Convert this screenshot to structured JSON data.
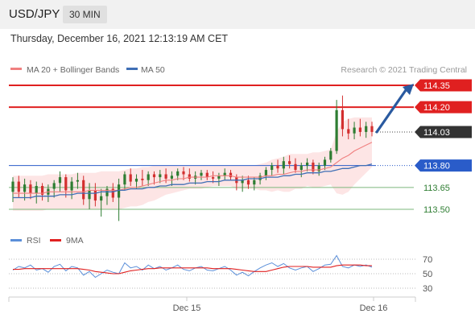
{
  "header": {
    "pair": "USD/JPY",
    "timeframe": "30 MIN"
  },
  "datetime": "Thursday, December 16, 2021 12:13:19 AM CET",
  "legend": {
    "ma20_bb": "MA 20 + Bollinger Bands",
    "ma50": "MA 50",
    "credit": "Research © 2021 Trading Central",
    "rsi": "RSI",
    "ma9": "9MA"
  },
  "colors": {
    "candle_up": "#2e7d32",
    "candle_down": "#d32f2f",
    "bb_fill": "#fde2e2",
    "ma20": "#f08080",
    "ma50": "#3f6fb5",
    "resistance": "#e02020",
    "pivot": "#2a5cc9",
    "support": "#7cb87c",
    "arrow": "#2a5aa0",
    "last_price": "#333333",
    "rsi": "#5b8fd9",
    "ma9": "#e02020"
  },
  "chart_data": {
    "type": "candlestick",
    "yunit": "JPY per USD",
    "x_ticks": [
      "Dec 15",
      "Dec 16"
    ],
    "levels": [
      {
        "value": "114.35",
        "kind": "resistance",
        "style": "box"
      },
      {
        "value": "114.20",
        "kind": "resistance",
        "style": "box"
      },
      {
        "value": "114.03",
        "kind": "last",
        "style": "box"
      },
      {
        "value": "113.80",
        "kind": "pivot",
        "style": "box"
      },
      {
        "value": "113.65",
        "kind": "support",
        "style": "text"
      },
      {
        "value": "113.50",
        "kind": "support",
        "style": "text"
      }
    ],
    "candles": [
      [
        113.62,
        113.72,
        113.55,
        113.69
      ],
      [
        113.69,
        113.73,
        113.58,
        113.62
      ],
      [
        113.62,
        113.71,
        113.56,
        113.67
      ],
      [
        113.67,
        113.7,
        113.57,
        113.61
      ],
      [
        113.61,
        113.69,
        113.54,
        113.66
      ],
      [
        113.66,
        113.68,
        113.56,
        113.6
      ],
      [
        113.6,
        113.67,
        113.55,
        113.64
      ],
      [
        113.64,
        113.7,
        113.58,
        113.68
      ],
      [
        113.68,
        113.76,
        113.62,
        113.72
      ],
      [
        113.72,
        113.74,
        113.58,
        113.63
      ],
      [
        113.63,
        113.72,
        113.57,
        113.69
      ],
      [
        113.69,
        113.75,
        113.64,
        113.7
      ],
      [
        113.7,
        113.73,
        113.53,
        113.57
      ],
      [
        113.57,
        113.68,
        113.5,
        113.63
      ],
      [
        113.63,
        113.68,
        113.52,
        113.56
      ],
      [
        113.56,
        113.64,
        113.45,
        113.59
      ],
      [
        113.59,
        113.66,
        113.53,
        113.64
      ],
      [
        113.64,
        113.68,
        113.55,
        113.58
      ],
      [
        113.58,
        113.71,
        113.42,
        113.67
      ],
      [
        113.67,
        113.76,
        113.63,
        113.74
      ],
      [
        113.74,
        113.78,
        113.66,
        113.69
      ],
      [
        113.69,
        113.74,
        113.64,
        113.71
      ],
      [
        113.71,
        113.77,
        113.66,
        113.7
      ],
      [
        113.7,
        113.76,
        113.66,
        113.74
      ],
      [
        113.74,
        113.76,
        113.67,
        113.72
      ],
      [
        113.72,
        113.77,
        113.68,
        113.74
      ],
      [
        113.74,
        113.78,
        113.68,
        113.71
      ],
      [
        113.71,
        113.76,
        113.66,
        113.73
      ],
      [
        113.73,
        113.78,
        113.7,
        113.76
      ],
      [
        113.76,
        113.79,
        113.7,
        113.74
      ],
      [
        113.74,
        113.78,
        113.69,
        113.71
      ],
      [
        113.71,
        113.76,
        113.67,
        113.73
      ],
      [
        113.73,
        113.77,
        113.7,
        113.75
      ],
      [
        113.75,
        113.77,
        113.7,
        113.72
      ],
      [
        113.72,
        113.76,
        113.68,
        113.71
      ],
      [
        113.71,
        113.75,
        113.66,
        113.73
      ],
      [
        113.73,
        113.78,
        113.7,
        113.75
      ],
      [
        113.75,
        113.77,
        113.7,
        113.72
      ],
      [
        113.72,
        113.74,
        113.63,
        113.68
      ],
      [
        113.68,
        113.73,
        113.62,
        113.7
      ],
      [
        113.7,
        113.73,
        113.64,
        113.67
      ],
      [
        113.67,
        113.72,
        113.63,
        113.7
      ],
      [
        113.7,
        113.75,
        113.67,
        113.73
      ],
      [
        113.73,
        113.79,
        113.7,
        113.77
      ],
      [
        113.77,
        113.82,
        113.73,
        113.8
      ],
      [
        113.8,
        113.84,
        113.75,
        113.78
      ],
      [
        113.78,
        113.86,
        113.74,
        113.83
      ],
      [
        113.83,
        113.87,
        113.78,
        113.81
      ],
      [
        113.81,
        113.85,
        113.75,
        113.77
      ],
      [
        113.77,
        113.82,
        113.72,
        113.8
      ],
      [
        113.8,
        113.85,
        113.76,
        113.82
      ],
      [
        113.82,
        113.84,
        113.74,
        113.76
      ],
      [
        113.76,
        113.82,
        113.73,
        113.8
      ],
      [
        113.8,
        113.86,
        113.77,
        113.84
      ],
      [
        113.84,
        113.92,
        113.82,
        113.9
      ],
      [
        113.9,
        114.25,
        113.88,
        114.18
      ],
      [
        114.18,
        114.28,
        114.0,
        114.05
      ],
      [
        114.05,
        114.12,
        113.98,
        114.02
      ],
      [
        114.02,
        114.1,
        113.98,
        114.06
      ],
      [
        114.06,
        114.12,
        114.0,
        114.03
      ],
      [
        114.03,
        114.1,
        113.99,
        114.07
      ],
      [
        114.07,
        114.1,
        114.0,
        114.03
      ]
    ],
    "ma20": [
      113.61,
      113.61,
      113.61,
      113.61,
      113.61,
      113.61,
      113.62,
      113.62,
      113.62,
      113.62,
      113.62,
      113.62,
      113.62,
      113.63,
      113.63,
      113.63,
      113.63,
      113.63,
      113.63,
      113.64,
      113.65,
      113.65,
      113.66,
      113.67,
      113.68,
      113.69,
      113.7,
      113.7,
      113.71,
      113.71,
      113.72,
      113.72,
      113.72,
      113.72,
      113.73,
      113.73,
      113.73,
      113.73,
      113.72,
      113.72,
      113.72,
      113.72,
      113.72,
      113.73,
      113.73,
      113.74,
      113.74,
      113.75,
      113.76,
      113.76,
      113.77,
      113.77,
      113.77,
      113.78,
      113.79,
      113.82,
      113.85,
      113.87,
      113.9,
      113.92,
      113.94,
      113.96
    ],
    "ma50": [
      113.58,
      113.58,
      113.58,
      113.58,
      113.59,
      113.59,
      113.59,
      113.59,
      113.6,
      113.6,
      113.6,
      113.61,
      113.61,
      113.61,
      113.61,
      113.62,
      113.62,
      113.62,
      113.63,
      113.63,
      113.64,
      113.64,
      113.64,
      113.65,
      113.65,
      113.66,
      113.66,
      113.67,
      113.67,
      113.67,
      113.68,
      113.68,
      113.68,
      113.69,
      113.69,
      113.69,
      113.7,
      113.7,
      113.7,
      113.7,
      113.71,
      113.71,
      113.71,
      113.72,
      113.72,
      113.72,
      113.73,
      113.73,
      113.74,
      113.74,
      113.75,
      113.75,
      113.75,
      113.76,
      113.76,
      113.77,
      113.78,
      113.78,
      113.79,
      113.8,
      113.8,
      113.81
    ],
    "bb_upper": [
      113.73,
      113.73,
      113.73,
      113.73,
      113.73,
      113.73,
      113.74,
      113.74,
      113.74,
      113.74,
      113.74,
      113.75,
      113.75,
      113.75,
      113.75,
      113.76,
      113.76,
      113.76,
      113.76,
      113.77,
      113.78,
      113.78,
      113.79,
      113.79,
      113.8,
      113.8,
      113.8,
      113.8,
      113.8,
      113.8,
      113.8,
      113.8,
      113.8,
      113.8,
      113.8,
      113.8,
      113.8,
      113.8,
      113.8,
      113.8,
      113.8,
      113.8,
      113.81,
      113.82,
      113.84,
      113.85,
      113.86,
      113.88,
      113.88,
      113.88,
      113.88,
      113.89,
      113.89,
      113.9,
      113.91,
      114.03,
      114.1,
      114.12,
      114.13,
      114.13,
      114.13,
      114.13
    ],
    "bb_lower": [
      113.49,
      113.49,
      113.49,
      113.49,
      113.49,
      113.49,
      113.5,
      113.5,
      113.5,
      113.5,
      113.5,
      113.5,
      113.5,
      113.5,
      113.5,
      113.5,
      113.5,
      113.5,
      113.5,
      113.51,
      113.52,
      113.52,
      113.53,
      113.55,
      113.56,
      113.58,
      113.6,
      113.61,
      113.62,
      113.63,
      113.64,
      113.64,
      113.64,
      113.65,
      113.66,
      113.66,
      113.66,
      113.66,
      113.64,
      113.64,
      113.64,
      113.64,
      113.63,
      113.63,
      113.62,
      113.63,
      113.62,
      113.62,
      113.64,
      113.64,
      113.66,
      113.65,
      113.65,
      113.66,
      113.67,
      113.61,
      113.6,
      113.62,
      113.67,
      113.71,
      113.75,
      113.79
    ],
    "forecast_arrow": {
      "from": 114.03,
      "to": 114.35
    },
    "rsi": {
      "ticks": [
        "70",
        "50",
        "30"
      ],
      "ylim": [
        20,
        80
      ],
      "rsi": [
        55,
        60,
        58,
        62,
        55,
        57,
        52,
        60,
        63,
        54,
        60,
        58,
        48,
        53,
        45,
        50,
        55,
        52,
        50,
        65,
        58,
        60,
        55,
        62,
        57,
        60,
        55,
        58,
        62,
        56,
        54,
        58,
        60,
        55,
        54,
        57,
        60,
        55,
        48,
        52,
        47,
        53,
        58,
        62,
        65,
        60,
        64,
        58,
        55,
        58,
        60,
        53,
        57,
        62,
        63,
        75,
        60,
        58,
        62,
        60,
        62,
        59
      ],
      "ma9": [
        56,
        56,
        57,
        57,
        57,
        57,
        57,
        57,
        57,
        57,
        57,
        57,
        56,
        55,
        53,
        52,
        51,
        50,
        50,
        52,
        54,
        55,
        56,
        57,
        57,
        58,
        58,
        58,
        58,
        58,
        58,
        58,
        58,
        58,
        57,
        57,
        57,
        57,
        56,
        55,
        54,
        53,
        53,
        53,
        55,
        57,
        59,
        60,
        60,
        60,
        60,
        59,
        59,
        59,
        59,
        61,
        62,
        62,
        62,
        62,
        61,
        61
      ]
    }
  }
}
